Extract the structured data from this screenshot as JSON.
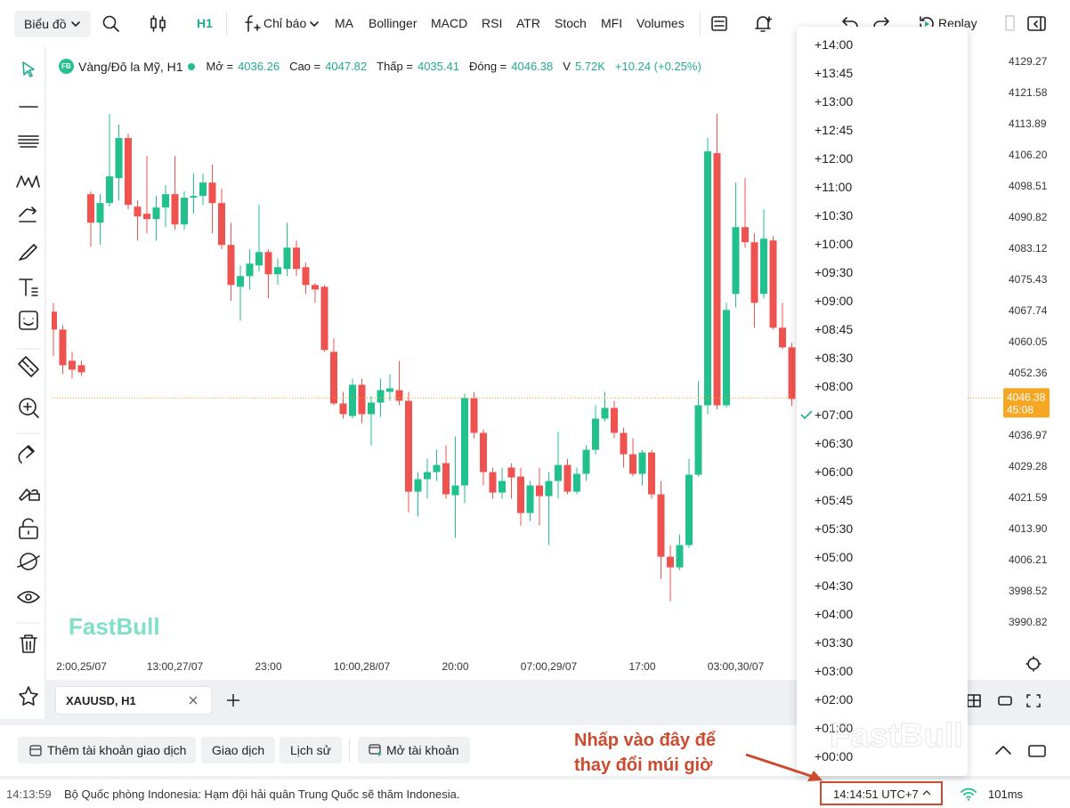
{
  "toolbar": {
    "chart_type": "Biểu đồ",
    "interval": "H1",
    "indicators": "Chỉ báo",
    "studies": [
      "MA",
      "Bollinger",
      "MACD",
      "RSI",
      "ATR",
      "Stoch",
      "MFI",
      "Volumes"
    ],
    "replay": "Replay"
  },
  "legend": {
    "badge": "FB",
    "symbol": "Vàng/Đô la Mỹ, H1",
    "open_label": "Mở =",
    "high_label": "Cao =",
    "low_label": "Thấp =",
    "close_label": "Đóng =",
    "volume_label": "V",
    "volume": "5.72K",
    "change": "+10.24 (+0.25%)"
  },
  "watermark": "FastBull",
  "price_tag": {
    "countdown": "45:08"
  },
  "chart_data": {
    "type": "candlestick",
    "title": "Vàng/Đô la Mỹ, H1",
    "up_color": "#22c08c",
    "down_color": "#ef5350",
    "last_price_color": "#f5a623",
    "grid": false,
    "categories": [
      null,
      null,
      null,
      "2:00,25/07",
      null,
      null,
      null,
      null,
      null,
      null,
      null,
      null,
      null,
      "13:00,27/07",
      null,
      null,
      null,
      null,
      null,
      null,
      null,
      null,
      null,
      "23:00",
      null,
      null,
      null,
      null,
      null,
      null,
      null,
      null,
      null,
      "10:00,28/07",
      null,
      null,
      null,
      null,
      null,
      null,
      null,
      null,
      null,
      "20:00",
      null,
      null,
      null,
      null,
      null,
      null,
      null,
      null,
      null,
      "07:00,29/07",
      null,
      null,
      null,
      null,
      null,
      null,
      null,
      null,
      null,
      "17:00",
      null,
      null,
      null,
      null,
      null,
      null,
      null,
      null,
      null,
      "03:00,30/07",
      null,
      null,
      null,
      null,
      null,
      null,
      null
    ],
    "open": [
      4067.67,
      4063.27,
      4055.57,
      4054.47,
      4096.71,
      4089.67,
      4094.51,
      4100.67,
      4110.57,
      4093.63,
      4091.87,
      4090.55,
      4093.41,
      4096.71,
      4089.23,
      4095.83,
      4096.27,
      4099.57,
      4094.51,
      4084.17,
      4073.83,
      4076.47,
      4079.11,
      4082.41,
      4076.91,
      4078.23,
      4083.51,
      4078.67,
      4074.27,
      4073.83,
      4057.77,
      4045.01,
      4041.93,
      4049.63,
      4042.37,
      4045.23,
      4047.87,
      4048.31,
      4045.67,
      4023.23,
      4026.31,
      4028.07,
      4030.27,
      4022.35,
      4024.77,
      4046.33,
      4037.75,
      4028.07,
      4023.01,
      4029.17,
      4026.97,
      4017.95,
      4024.77,
      4022.13,
      4025.87,
      4029.83,
      4023.23,
      4027.63,
      4033.57,
      4041.27,
      4043.91,
      4037.75,
      4032.47,
      4027.63,
      4032.91,
      4022.57,
      4007.17,
      4004.53,
      4010.03,
      4027.41,
      4044.57,
      4106.83,
      4044.57,
      4072.07,
      4088.57,
      4084.83,
      4072.07,
      4085.27,
      4063.71,
      4058.87,
      4036.26
    ],
    "high": [
      4069.87,
      4064.37,
      4057.77,
      4055.57,
      4097.37,
      4096.71,
      4116.51,
      4113.87,
      4111.67,
      4095.17,
      4106.17,
      4096.27,
      4098.91,
      4106.17,
      4097.37,
      4101.77,
      4101.77,
      4103.97,
      4098.03,
      4089.67,
      4079.11,
      4083.07,
      4094.07,
      4083.07,
      4080.87,
      4089.67,
      4085.27,
      4079.77,
      4074.71,
      4074.27,
      4061.07,
      4047.87,
      4051.17,
      4051.17,
      4046.77,
      4051.17,
      4052.27,
      4055.57,
      4047.87,
      4028.07,
      4031.37,
      4033.57,
      4034.67,
      4036.87,
      4047.43,
      4047.87,
      4038.63,
      4029.17,
      4029.17,
      4030.27,
      4029.17,
      4025.87,
      4029.17,
      4028.07,
      4037.97,
      4031.37,
      4029.17,
      4034.67,
      4044.57,
      4047.87,
      4045.67,
      4039.07,
      4036.43,
      4033.57,
      4033.57,
      4025.87,
      4010.03,
      4012.67,
      4031.37,
      4050.51,
      4110.57,
      4116.51,
      4069.87,
      4099.57,
      4100.67,
      4087.03,
      4092.97,
      4086.37,
      4069.87,
      4059.97,
      4047.82
    ],
    "low": [
      4056.67,
      4052.27,
      4051.17,
      4051.83,
      4083.73,
      4084.17,
      4093.63,
      4095.17,
      4092.97,
      4085.27,
      4087.03,
      4085.27,
      4088.57,
      4087.91,
      4087.91,
      4091.87,
      4094.07,
      4087.03,
      4083.07,
      4070.31,
      4065.47,
      4073.17,
      4077.57,
      4070.97,
      4074.27,
      4076.47,
      4076.47,
      4072.07,
      4069.87,
      4057.77,
      4044.57,
      4041.27,
      4041.27,
      4040.17,
      4034.67,
      4041.71,
      4045.67,
      4044.57,
      4018.17,
      4017.07,
      4021.47,
      4025.87,
      4021.47,
      4011.79,
      4020.37,
      4036.43,
      4024.77,
      4021.47,
      4021.47,
      4021.47,
      4014.87,
      4015.97,
      4014.87,
      4010.03,
      4021.47,
      4022.57,
      4022.57,
      4025.87,
      4032.47,
      4040.61,
      4036.43,
      4029.17,
      4026.97,
      4024.77,
      4021.47,
      4001.67,
      3996.17,
      4003.87,
      4009.37,
      4026.97,
      4042.37,
      4043.47,
      4043.91,
      4068.77,
      4083.51,
      4063.71,
      4070.97,
      4063.27,
      4058.43,
      4044.35,
      4035.41
    ],
    "close": [
      4063.27,
      4054.47,
      4053.37,
      4052.71,
      4089.67,
      4094.51,
      4101.11,
      4110.57,
      4094.07,
      4091.21,
      4090.55,
      4093.41,
      4096.71,
      4089.23,
      4095.83,
      4096.27,
      4099.57,
      4094.51,
      4084.17,
      4074.27,
      4076.47,
      4079.55,
      4082.41,
      4076.91,
      4078.67,
      4083.51,
      4078.23,
      4074.27,
      4073.17,
      4058.21,
      4045.01,
      4042.37,
      4049.63,
      4042.37,
      4045.23,
      4048.31,
      4048.75,
      4045.67,
      4023.23,
      4026.31,
      4028.07,
      4029.83,
      4022.57,
      4024.77,
      4046.33,
      4037.75,
      4028.07,
      4023.01,
      4025.87,
      4026.75,
      4017.95,
      4024.77,
      4022.13,
      4025.87,
      4029.83,
      4023.23,
      4027.63,
      4033.57,
      4041.27,
      4043.91,
      4037.75,
      4032.47,
      4027.63,
      4032.91,
      4022.57,
      4007.17,
      4004.53,
      4010.03,
      4027.41,
      4044.57,
      4107.27,
      4044.57,
      4068.11,
      4088.57,
      4084.83,
      4069.87,
      4085.71,
      4063.71,
      4058.87,
      4046.11,
      4046.38
    ],
    "ylim": [
      3983.13,
      4132.57
    ],
    "yticks": [
      4129.27,
      4121.58,
      4113.89,
      {
        "value": 4106.2,
        "label": "4106.20"
      },
      4098.51,
      4090.82,
      4083.12,
      4075.43,
      4067.74,
      4060.05,
      4052.36,
      4036.97,
      4029.28,
      4021.59,
      {
        "value": 4013.9,
        "label": "4013.90"
      },
      4006.21,
      3998.52,
      3990.82
    ]
  },
  "tabs": {
    "active": "XAUUSD, H1"
  },
  "account_bar": {
    "buttons": [
      "Thêm tài khoản giao dịch",
      "Giao dịch",
      "Lịch sử",
      "Mở tài khoản"
    ]
  },
  "status_bar": {
    "time": "14:13:59",
    "news": "Bộ Quốc phòng Indonesia: Hạm đội hải quân Trung Quốc sẽ thăm Indonesia.",
    "clock": "14:14:51 UTC+7",
    "latency": "101ms"
  },
  "timezone_menu": {
    "options": [
      "+14:00",
      "+13:45",
      "+13:00",
      "+12:45",
      "+12:00",
      "+11:00",
      "+10:30",
      "+10:00",
      "+09:30",
      "+09:00",
      "+08:45",
      "+08:30",
      "+08:00",
      "+07:00",
      "+06:30",
      "+06:00",
      "+05:45",
      "+05:30",
      "+05:00",
      "+04:30",
      "+04:00",
      "+03:30",
      "+03:00",
      "+02:00",
      "+01:00",
      "+00:00"
    ],
    "checked_index": 13
  },
  "annotation": {
    "lines": [
      "Nhấp vào đây để",
      "thay đổi múi giờ"
    ]
  }
}
